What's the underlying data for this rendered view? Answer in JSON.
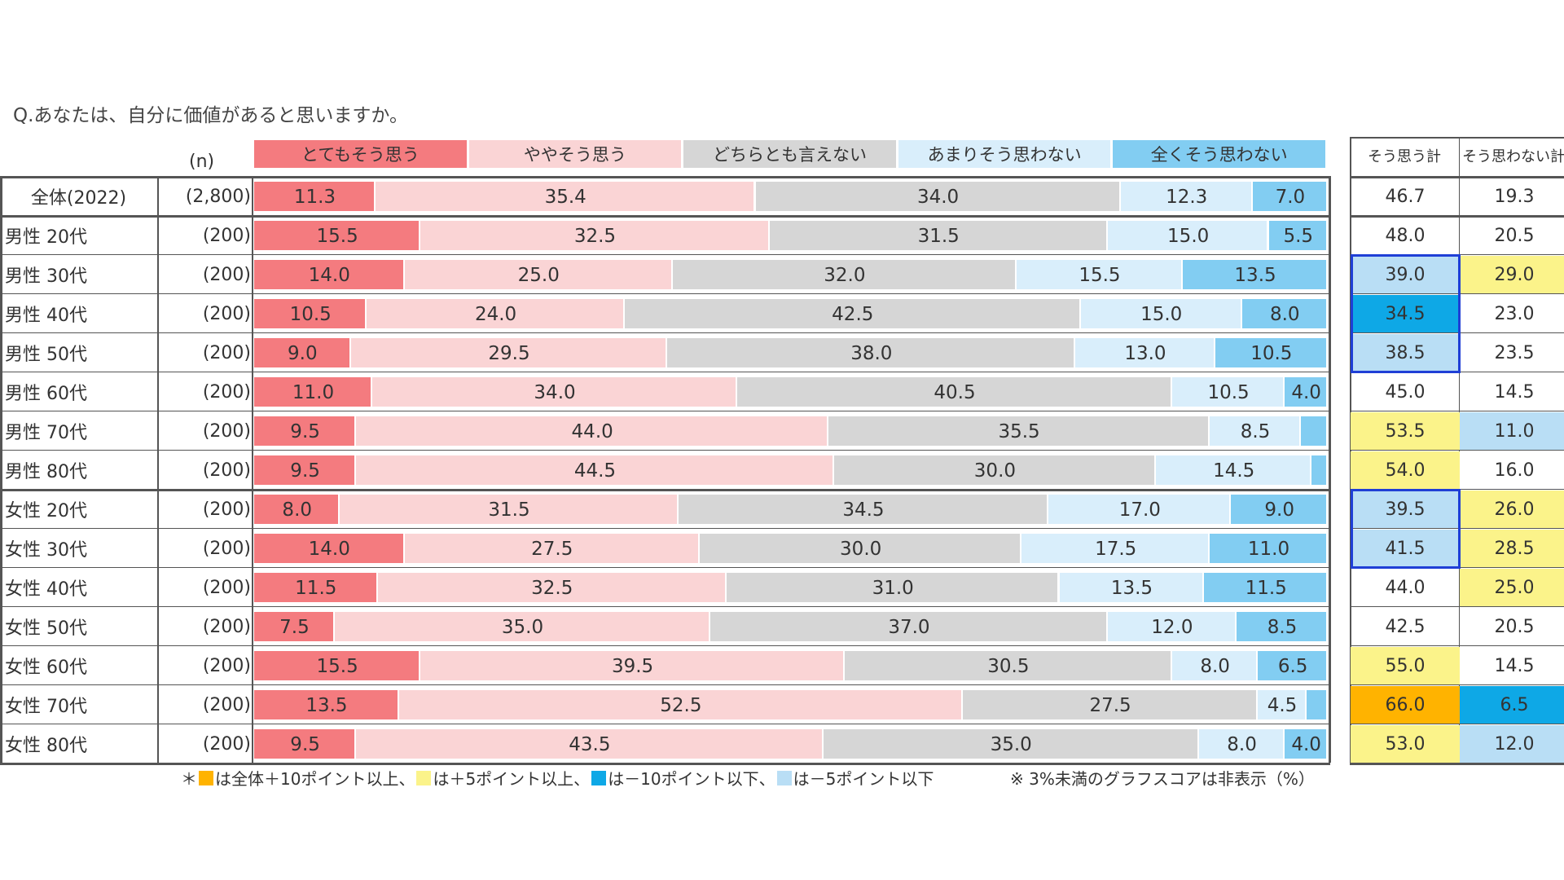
{
  "question": "Q.あなたは、自分に価値があると思いますか。",
  "n_header": "(n)",
  "colors": {
    "s1": "#f47b7f",
    "s2": "#fad4d5",
    "s3": "#d6d6d6",
    "s4": "#d9eefb",
    "s5": "#82cdf2",
    "hl_plus10": "#ffb300",
    "hl_plus5": "#fbf38a",
    "hl_minus10": "#0ea8e6",
    "hl_minus5": "#b9def5"
  },
  "summary_headers": [
    "そう思う計",
    "そう思わない計"
  ],
  "footnote": {
    "prefix": "＊",
    "plus10": "は全体＋10ポイント以上、",
    "plus5": "は＋5ポイント以上、",
    "minus10": "は－10ポイント以下、",
    "minus5": "は－5ポイント以下",
    "note": "※ 3%未満のグラフスコアは非表示（%）"
  },
  "chart_data": {
    "type": "bar",
    "orientation": "horizontal",
    "stacked": true,
    "normalized": true,
    "title": "Q.あなたは、自分に価値があると思いますか。",
    "unit": "%",
    "label_threshold": 3,
    "series_names": [
      "とてもそう思う",
      "ややそう思う",
      "どちらとも言えない",
      "あまりそう思わない",
      "全くそう思わない"
    ],
    "rows": [
      {
        "label": "全体(2022)",
        "n": "(2,800)",
        "values": [
          11.3,
          35.4,
          34.0,
          12.3,
          7.0
        ],
        "agree": "46.7",
        "disagree": "19.3",
        "agree_hl": "",
        "disagree_hl": ""
      },
      {
        "label": "男性 20代",
        "n": "(200)",
        "values": [
          15.5,
          32.5,
          31.5,
          15.0,
          5.5
        ],
        "agree": "48.0",
        "disagree": "20.5",
        "agree_hl": "",
        "disagree_hl": ""
      },
      {
        "label": "男性 30代",
        "n": "(200)",
        "values": [
          14.0,
          25.0,
          32.0,
          15.5,
          13.5
        ],
        "agree": "39.0",
        "disagree": "29.0",
        "agree_hl": "minus5",
        "disagree_hl": "plus5"
      },
      {
        "label": "男性 40代",
        "n": "(200)",
        "values": [
          10.5,
          24.0,
          42.5,
          15.0,
          8.0
        ],
        "agree": "34.5",
        "disagree": "23.0",
        "agree_hl": "minus10",
        "disagree_hl": ""
      },
      {
        "label": "男性 50代",
        "n": "(200)",
        "values": [
          9.0,
          29.5,
          38.0,
          13.0,
          10.5
        ],
        "agree": "38.5",
        "disagree": "23.5",
        "agree_hl": "minus5",
        "disagree_hl": ""
      },
      {
        "label": "男性 60代",
        "n": "(200)",
        "values": [
          11.0,
          34.0,
          40.5,
          10.5,
          4.0
        ],
        "agree": "45.0",
        "disagree": "14.5",
        "agree_hl": "",
        "disagree_hl": ""
      },
      {
        "label": "男性 70代",
        "n": "(200)",
        "values": [
          9.5,
          44.0,
          35.5,
          8.5,
          2.5
        ],
        "agree": "53.5",
        "disagree": "11.0",
        "agree_hl": "plus5",
        "disagree_hl": "minus5"
      },
      {
        "label": "男性 80代",
        "n": "(200)",
        "values": [
          9.5,
          44.5,
          30.0,
          14.5,
          1.5
        ],
        "agree": "54.0",
        "disagree": "16.0",
        "agree_hl": "plus5",
        "disagree_hl": ""
      },
      {
        "label": "女性 20代",
        "n": "(200)",
        "values": [
          8.0,
          31.5,
          34.5,
          17.0,
          9.0
        ],
        "agree": "39.5",
        "disagree": "26.0",
        "agree_hl": "minus5",
        "disagree_hl": "plus5"
      },
      {
        "label": "女性 30代",
        "n": "(200)",
        "values": [
          14.0,
          27.5,
          30.0,
          17.5,
          11.0
        ],
        "agree": "41.5",
        "disagree": "28.5",
        "agree_hl": "minus5",
        "disagree_hl": "plus5"
      },
      {
        "label": "女性 40代",
        "n": "(200)",
        "values": [
          11.5,
          32.5,
          31.0,
          13.5,
          11.5
        ],
        "agree": "44.0",
        "disagree": "25.0",
        "agree_hl": "",
        "disagree_hl": "plus5"
      },
      {
        "label": "女性 50代",
        "n": "(200)",
        "values": [
          7.5,
          35.0,
          37.0,
          12.0,
          8.5
        ],
        "agree": "42.5",
        "disagree": "20.5",
        "agree_hl": "",
        "disagree_hl": ""
      },
      {
        "label": "女性 60代",
        "n": "(200)",
        "values": [
          15.5,
          39.5,
          30.5,
          8.0,
          6.5
        ],
        "agree": "55.0",
        "disagree": "14.5",
        "agree_hl": "plus5",
        "disagree_hl": ""
      },
      {
        "label": "女性 70代",
        "n": "(200)",
        "values": [
          13.5,
          52.5,
          27.5,
          4.5,
          2.0
        ],
        "agree": "66.0",
        "disagree": "6.5",
        "agree_hl": "plus10",
        "disagree_hl": "minus10"
      },
      {
        "label": "女性 80代",
        "n": "(200)",
        "values": [
          9.5,
          43.5,
          35.0,
          8.0,
          4.0
        ],
        "agree": "53.0",
        "disagree": "12.0",
        "agree_hl": "plus5",
        "disagree_hl": "minus5"
      }
    ]
  }
}
